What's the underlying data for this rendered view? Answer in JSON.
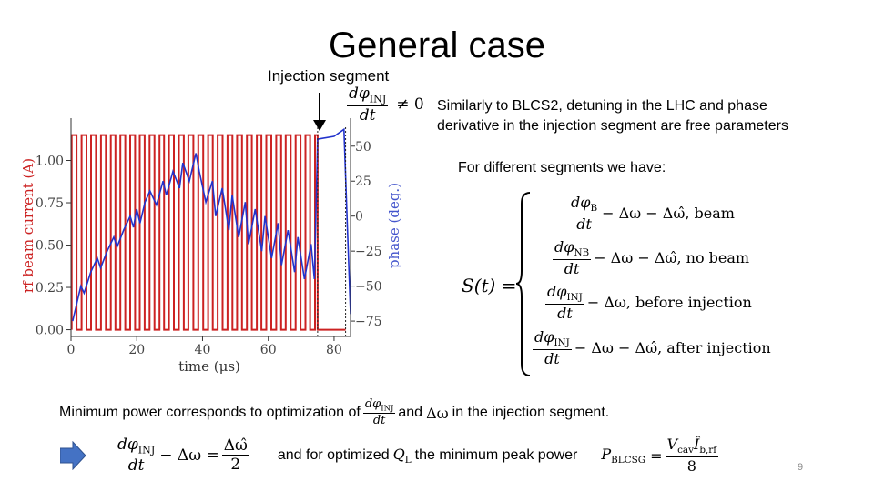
{
  "slide": {
    "title": "General case",
    "injection_label": "Injection segment",
    "free_params_line1": "Similarly to BLCS2, detuning in the LHC and phase",
    "free_params_line2": "derivative in the injection segment are free parameters",
    "segments_intro": "For different segments we have:",
    "min_power_pre": "Minimum power corresponds to optimization of",
    "min_power_and": "and",
    "min_power_post": "in the injection segment.",
    "optimized_pre": "and for optimized",
    "optimized_post": "the minimum peak power",
    "slide_number": "9"
  },
  "math": {
    "d_phi": "dφ",
    "dt": "dt",
    "inj_sub": "INJ",
    "b_sub": "B",
    "nb_sub": "NB",
    "ne_zero": "≠ 0",
    "s_of_t": "S(t) =",
    "minus_dw": "− Δω",
    "minus_dw_hat": "− Δω̂",
    "case_beam": ", beam",
    "case_no_beam": ", no beam",
    "case_before": ", before injection",
    "case_after": ", after injection",
    "delta_omega": "Δω",
    "dw_hat_num": "Δω̂",
    "two": "2",
    "q_l": "Q",
    "l_sub": "L",
    "eq": "=",
    "p_blcsg": "P",
    "blcsg_sub": "BLCSG",
    "vcav_ib": "V",
    "cav_sub": "cav",
    "ib_hat": "Î",
    "brf_sub": "b,rf",
    "eight": "8"
  },
  "chart_data": {
    "type": "line",
    "xlabel": "time (μs)",
    "ylabel_left": "rf beam current (A)",
    "ylabel_right": "phase (deg.)",
    "xlim": [
      0,
      85
    ],
    "ylim_left": [
      -0.04,
      1.25
    ],
    "ylim_right": [
      -86,
      70
    ],
    "x_ticks": [
      "0",
      "20",
      "40",
      "60",
      "80"
    ],
    "x_tick_values": [
      0,
      20,
      40,
      60,
      80
    ],
    "y_left_ticks": [
      "0.00",
      "0.25",
      "0.50",
      "0.75",
      "1.00"
    ],
    "y_left_tick_values": [
      0,
      0.25,
      0.5,
      0.75,
      1.0
    ],
    "y_right_ticks": [
      "−75",
      "−50",
      "−25",
      "0",
      "25",
      "50"
    ],
    "y_right_tick_values": [
      -75,
      -50,
      -25,
      0,
      25,
      50
    ],
    "injection_boundaries": [
      75,
      83.5
    ],
    "series": [
      {
        "color": "#cc2222",
        "axis": "left",
        "x": [
          0.2,
          0.2,
          1.7,
          1.7,
          3.2,
          3.2,
          4.7,
          4.7,
          6.1,
          6.1,
          7.6,
          7.6,
          9.1,
          9.1,
          10.6,
          10.6,
          12.1,
          12.1,
          13.5,
          13.5,
          15.0,
          15.0,
          16.5,
          16.5,
          18.0,
          18.0,
          19.5,
          19.5,
          20.9,
          20.9,
          22.4,
          22.4,
          23.9,
          23.9,
          25.4,
          25.4,
          26.9,
          26.9,
          28.3,
          28.3,
          29.8,
          29.8,
          31.3,
          31.3,
          32.8,
          32.8,
          34.3,
          34.3,
          35.7,
          35.7,
          37.2,
          37.2,
          38.7,
          38.7,
          40.2,
          40.2,
          41.7,
          41.7,
          43.1,
          43.1,
          44.6,
          44.6,
          46.1,
          46.1,
          47.6,
          47.6,
          49.1,
          49.1,
          50.5,
          50.5,
          52.0,
          52.0,
          53.5,
          53.5,
          55.0,
          55.0,
          56.5,
          56.5,
          57.9,
          57.9,
          59.4,
          59.4,
          60.9,
          60.9,
          62.4,
          62.4,
          63.9,
          63.9,
          65.3,
          65.3,
          66.8,
          66.8,
          68.3,
          68.3,
          69.8,
          69.8,
          71.3,
          71.3,
          72.7,
          72.7,
          74.2,
          74.2,
          75.0,
          75.0,
          83.5
        ],
        "y": [
          0,
          1.15,
          1.15,
          0,
          0,
          1.15,
          1.15,
          0,
          0,
          1.15,
          1.15,
          0,
          0,
          1.15,
          1.15,
          0,
          0,
          1.15,
          1.15,
          0,
          0,
          1.15,
          1.15,
          0,
          0,
          1.15,
          1.15,
          0,
          0,
          1.15,
          1.15,
          0,
          0,
          1.15,
          1.15,
          0,
          0,
          1.15,
          1.15,
          0,
          0,
          1.15,
          1.15,
          0,
          0,
          1.15,
          1.15,
          0,
          0,
          1.15,
          1.15,
          0,
          0,
          1.15,
          1.15,
          0,
          0,
          1.15,
          1.15,
          0,
          0,
          1.15,
          1.15,
          0,
          0,
          1.15,
          1.15,
          0,
          0,
          1.15,
          1.15,
          0,
          0,
          1.15,
          1.15,
          0,
          0,
          1.15,
          1.15,
          0,
          0,
          1.15,
          1.15,
          0,
          0,
          1.15,
          1.15,
          0,
          0,
          1.15,
          1.15,
          0,
          0,
          1.15,
          1.15,
          0,
          0,
          1.15,
          1.15,
          0,
          0,
          1.15,
          1.15,
          0,
          0
        ]
      },
      {
        "color": "#2233cc",
        "axis": "right",
        "x": [
          0.5,
          3,
          4,
          6,
          8,
          9,
          11,
          13,
          14,
          16,
          18,
          19,
          20,
          21,
          22.5,
          24,
          26,
          28,
          29,
          31,
          33,
          34,
          36,
          38,
          39,
          41,
          43,
          44,
          46,
          48,
          49,
          51,
          53,
          54,
          56,
          58,
          59,
          61,
          63,
          64,
          66,
          68,
          69,
          71,
          73,
          74,
          75,
          80,
          83,
          84,
          85
        ],
        "y": [
          -75,
          -50,
          -55,
          -40,
          -30,
          -37,
          -25,
          -15,
          -22,
          -10,
          0,
          -8,
          5,
          -5,
          10,
          18,
          8,
          25,
          15,
          32,
          20,
          38,
          25,
          45,
          32,
          10,
          25,
          0,
          20,
          -10,
          15,
          -15,
          10,
          -20,
          5,
          -25,
          0,
          -30,
          -5,
          -35,
          -10,
          -40,
          -15,
          -45,
          -20,
          -45,
          55,
          57,
          62,
          -5,
          -70
        ]
      }
    ]
  }
}
